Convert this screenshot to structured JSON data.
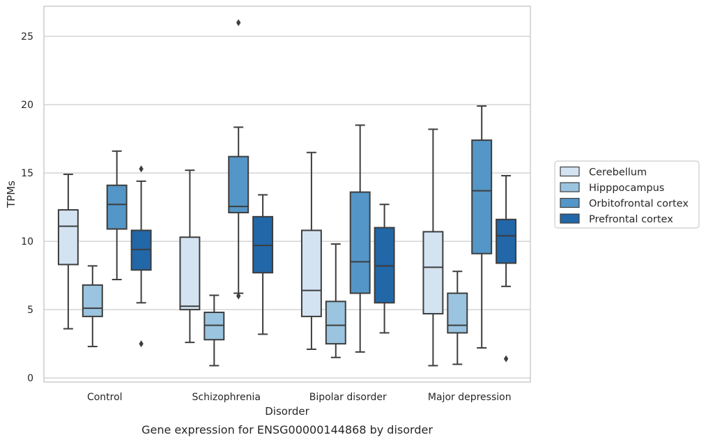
{
  "chart_data": {
    "type": "boxplot",
    "title": "",
    "caption": "Gene expression for ENSG00000144868 by disorder",
    "xlabel": "Disorder",
    "ylabel": "TPMs",
    "ylim": [
      -0.3,
      27.2
    ],
    "yticks": [
      0,
      5,
      10,
      15,
      20,
      25
    ],
    "grid": "horizontal",
    "legend_position": "right",
    "categories": [
      "Control",
      "Schizophrenia",
      "Bipolar disorder",
      "Major depression"
    ],
    "series": [
      {
        "name": "Cerebellum",
        "color": "#d3e3f2",
        "boxes": [
          {
            "whislo": 3.6,
            "q1": 8.3,
            "med": 11.1,
            "q3": 12.3,
            "whishi": 14.9,
            "fliers": []
          },
          {
            "whislo": 2.6,
            "q1": 5.0,
            "med": 5.25,
            "q3": 10.3,
            "whishi": 15.2,
            "fliers": []
          },
          {
            "whislo": 2.1,
            "q1": 4.5,
            "med": 6.4,
            "q3": 10.8,
            "whishi": 16.5,
            "fliers": []
          },
          {
            "whislo": 0.9,
            "q1": 4.7,
            "med": 8.1,
            "q3": 10.7,
            "whishi": 18.2,
            "fliers": []
          }
        ]
      },
      {
        "name": "Hipppocampus",
        "color": "#9ac4df",
        "boxes": [
          {
            "whislo": 2.3,
            "q1": 4.5,
            "med": 5.1,
            "q3": 6.8,
            "whishi": 8.2,
            "fliers": []
          },
          {
            "whislo": 0.9,
            "q1": 2.8,
            "med": 3.85,
            "q3": 4.8,
            "whishi": 6.05,
            "fliers": []
          },
          {
            "whislo": 1.5,
            "q1": 2.5,
            "med": 3.85,
            "q3": 5.6,
            "whishi": 9.8,
            "fliers": []
          },
          {
            "whislo": 1.0,
            "q1": 3.3,
            "med": 3.85,
            "q3": 6.2,
            "whishi": 7.8,
            "fliers": []
          }
        ]
      },
      {
        "name": "Orbitofrontal cortex",
        "color": "#5496c7",
        "boxes": [
          {
            "whislo": 7.2,
            "q1": 10.9,
            "med": 12.7,
            "q3": 14.1,
            "whishi": 16.6,
            "fliers": []
          },
          {
            "whislo": 6.2,
            "q1": 12.1,
            "med": 12.55,
            "q3": 16.2,
            "whishi": 18.35,
            "fliers": [
              6.0,
              26.0
            ]
          },
          {
            "whislo": 1.9,
            "q1": 6.2,
            "med": 8.5,
            "q3": 13.6,
            "whishi": 18.5,
            "fliers": []
          },
          {
            "whislo": 2.2,
            "q1": 9.1,
            "med": 13.7,
            "q3": 17.4,
            "whishi": 19.9,
            "fliers": []
          }
        ]
      },
      {
        "name": "Prefrontal cortex",
        "color": "#2267a8",
        "boxes": [
          {
            "whislo": 5.5,
            "q1": 7.9,
            "med": 9.4,
            "q3": 10.8,
            "whishi": 14.4,
            "fliers": [
              15.3,
              2.5
            ]
          },
          {
            "whislo": 3.2,
            "q1": 7.7,
            "med": 9.7,
            "q3": 11.8,
            "whishi": 13.4,
            "fliers": []
          },
          {
            "whislo": 3.3,
            "q1": 5.5,
            "med": 8.2,
            "q3": 11.0,
            "whishi": 12.7,
            "fliers": []
          },
          {
            "whislo": 6.7,
            "q1": 8.4,
            "med": 10.4,
            "q3": 11.6,
            "whishi": 14.8,
            "fliers": [
              1.4
            ]
          }
        ]
      }
    ]
  }
}
